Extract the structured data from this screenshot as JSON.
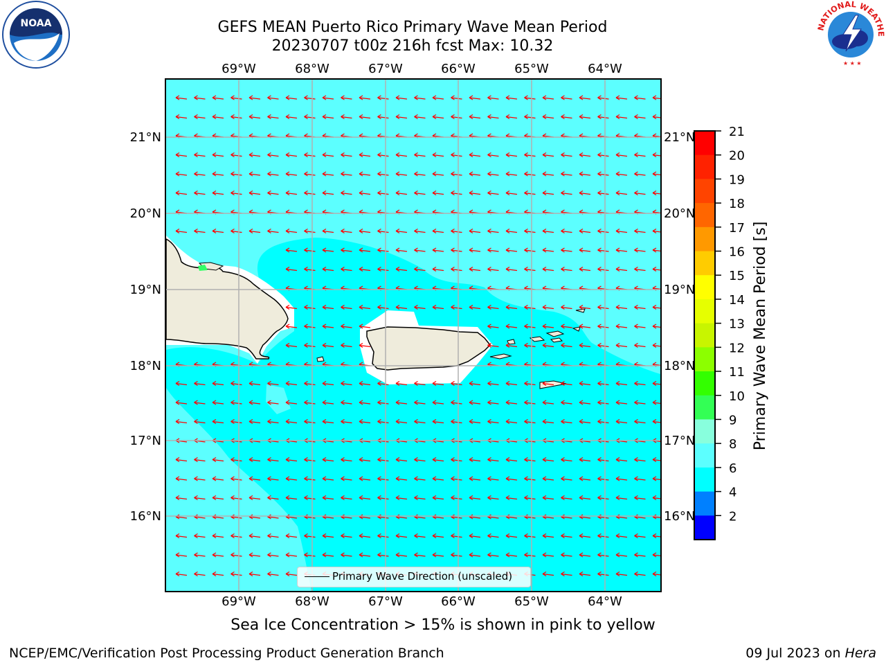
{
  "header": {
    "title_line1": "GEFS MEAN Puerto Rico Primary Wave Mean Period",
    "title_line2": "20230707 t00z 216h fcst   Max: 10.32"
  },
  "map": {
    "lon_labels": [
      "69°W",
      "68°W",
      "67°W",
      "66°W",
      "65°W",
      "64°W"
    ],
    "lat_labels": [
      "21°N",
      "20°N",
      "19°N",
      "18°N",
      "17°N",
      "16°N"
    ],
    "ocean_color": "#00ffff",
    "shade_color": "#5cffff",
    "land_color": "#efecdc",
    "arrow_color": "#ff0000",
    "legend_label": "Primary Wave Direction (unscaled)"
  },
  "colorbar": {
    "label": "Primary Wave Mean Period [s]",
    "ticks": [
      "21",
      "20",
      "19",
      "18",
      "17",
      "16",
      "15",
      "14",
      "13",
      "12",
      "11",
      "10",
      "9",
      "8",
      "6",
      "4",
      "2"
    ],
    "colors": [
      "#ff0000",
      "#ff2200",
      "#ff4400",
      "#ff6600",
      "#ff9900",
      "#ffcc00",
      "#ffff00",
      "#e6ff00",
      "#c8f500",
      "#8cff00",
      "#33ff00",
      "#33ff55",
      "#88ffdd",
      "#5cffff",
      "#00ffff",
      "#0080ff",
      "#0000ff"
    ]
  },
  "footer": {
    "ice_note": "Sea Ice Concentration > 15% is shown in pink to yellow",
    "left": "NCEP/EMC/Verification Post Processing Product Generation Branch",
    "right_date": "09 Jul 2023 on ",
    "right_host": "Hera"
  },
  "logos": {
    "noaa_text": "NOAA",
    "nws_text": "NATIONAL WEATHER SERVICE"
  }
}
